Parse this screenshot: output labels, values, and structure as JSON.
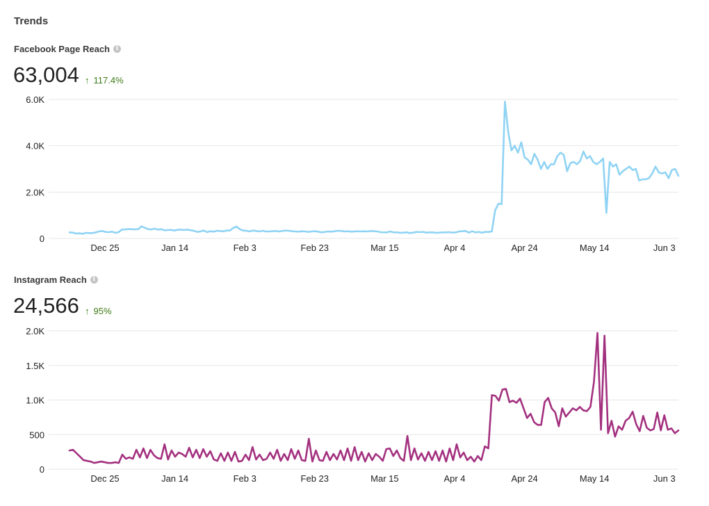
{
  "section_title": "Trends",
  "facebook": {
    "title": "Facebook Page Reach",
    "value": "63,004",
    "change": "117.4%",
    "change_arrow": "↑",
    "info_icon": "info-icon"
  },
  "instagram": {
    "title": "Instagram Reach",
    "value": "24,566",
    "change": "95%",
    "change_arrow": "↑",
    "info_icon": "info-icon"
  },
  "colors": {
    "facebook_line": "#8fd3f4",
    "instagram_line": "#a3307f",
    "change_positive": "#3d7a16",
    "grid": "#e6e6e6"
  },
  "chart_data": [
    {
      "type": "line",
      "title": "",
      "x_tick_labels": [
        "Dec 25",
        "Jan 14",
        "Feb 3",
        "Feb 23",
        "Mar 15",
        "Apr 4",
        "Apr 24",
        "May 14",
        "Jun 3"
      ],
      "y_tick_labels": [
        "0",
        "2.0K",
        "4.0K",
        "6.0K"
      ],
      "ylim": [
        0,
        6000
      ],
      "grid": true,
      "x_days_per_point": 1,
      "series": [
        {
          "color": "#8fd3f4",
          "values": [
            260,
            250,
            210,
            220,
            200,
            240,
            230,
            230,
            260,
            300,
            320,
            280,
            270,
            290,
            240,
            270,
            380,
            390,
            400,
            400,
            390,
            400,
            520,
            460,
            400,
            390,
            420,
            380,
            400,
            350,
            360,
            370,
            340,
            370,
            380,
            360,
            380,
            350,
            330,
            280,
            300,
            340,
            270,
            310,
            290,
            330,
            320,
            300,
            340,
            340,
            450,
            510,
            400,
            340,
            330,
            300,
            340,
            320,
            300,
            330,
            300,
            300,
            310,
            320,
            300,
            320,
            340,
            330,
            310,
            300,
            290,
            310,
            300,
            280,
            300,
            310,
            290,
            260,
            280,
            300,
            290,
            310,
            330,
            320,
            300,
            310,
            290,
            300,
            310,
            300,
            310,
            300,
            320,
            310,
            300,
            270,
            260,
            260,
            300,
            260,
            260,
            240,
            250,
            260,
            230,
            250,
            280,
            270,
            280,
            250,
            260,
            260,
            240,
            250,
            260,
            260,
            270,
            250,
            260,
            300,
            310,
            320,
            250,
            310,
            260,
            280,
            250,
            280,
            280,
            300,
            1200,
            1500,
            1480,
            5900,
            4600,
            3800,
            4000,
            3700,
            4150,
            3500,
            3400,
            3200,
            3650,
            3400,
            3000,
            3300,
            3000,
            3200,
            3200,
            3550,
            3700,
            3600,
            2900,
            3250,
            3300,
            3200,
            3350,
            3750,
            3450,
            3550,
            3300,
            3200,
            3300,
            3450,
            1100,
            3300,
            3100,
            3200,
            2750,
            2900,
            3000,
            3100,
            2950,
            3000,
            2500,
            2550,
            2550,
            2600,
            2800,
            3100,
            2850,
            2800,
            2850,
            2600,
            2950,
            3000,
            2700
          ]
        }
      ]
    },
    {
      "type": "line",
      "title": "",
      "x_tick_labels": [
        "Dec 25",
        "Jan 14",
        "Feb 3",
        "Feb 23",
        "Mar 15",
        "Apr 4",
        "Apr 24",
        "May 14",
        "Jun 3"
      ],
      "y_tick_labels": [
        "0",
        "500",
        "1.0K",
        "1.5K",
        "2.0K"
      ],
      "ylim": [
        0,
        2000
      ],
      "grid": true,
      "series": [
        {
          "color": "#a3307f",
          "values": [
            270,
            280,
            230,
            180,
            130,
            120,
            110,
            90,
            100,
            110,
            100,
            90,
            90,
            100,
            90,
            210,
            150,
            170,
            150,
            280,
            170,
            300,
            160,
            280,
            200,
            160,
            150,
            360,
            140,
            270,
            180,
            240,
            220,
            180,
            310,
            170,
            280,
            160,
            290,
            180,
            260,
            140,
            120,
            230,
            120,
            240,
            120,
            250,
            110,
            120,
            210,
            130,
            320,
            140,
            210,
            130,
            150,
            240,
            150,
            280,
            120,
            220,
            130,
            290,
            150,
            270,
            130,
            120,
            440,
            110,
            270,
            130,
            120,
            250,
            130,
            220,
            140,
            270,
            130,
            300,
            120,
            320,
            130,
            250,
            110,
            230,
            130,
            220,
            180,
            120,
            290,
            300,
            190,
            270,
            160,
            120,
            480,
            130,
            300,
            140,
            230,
            120,
            250,
            130,
            260,
            120,
            270,
            110,
            300,
            130,
            360,
            170,
            240,
            130,
            180,
            110,
            190,
            130,
            330,
            300,
            1070,
            1060,
            990,
            1150,
            1160,
            970,
            990,
            960,
            1020,
            880,
            740,
            800,
            680,
            640,
            640,
            970,
            1030,
            880,
            820,
            620,
            880,
            760,
            820,
            880,
            850,
            900,
            850,
            840,
            900,
            1260,
            1970,
            570,
            1930,
            520,
            700,
            470,
            620,
            570,
            700,
            740,
            830,
            650,
            550,
            770,
            600,
            560,
            580,
            820,
            560,
            780,
            570,
            590,
            520,
            560
          ]
        }
      ]
    }
  ]
}
